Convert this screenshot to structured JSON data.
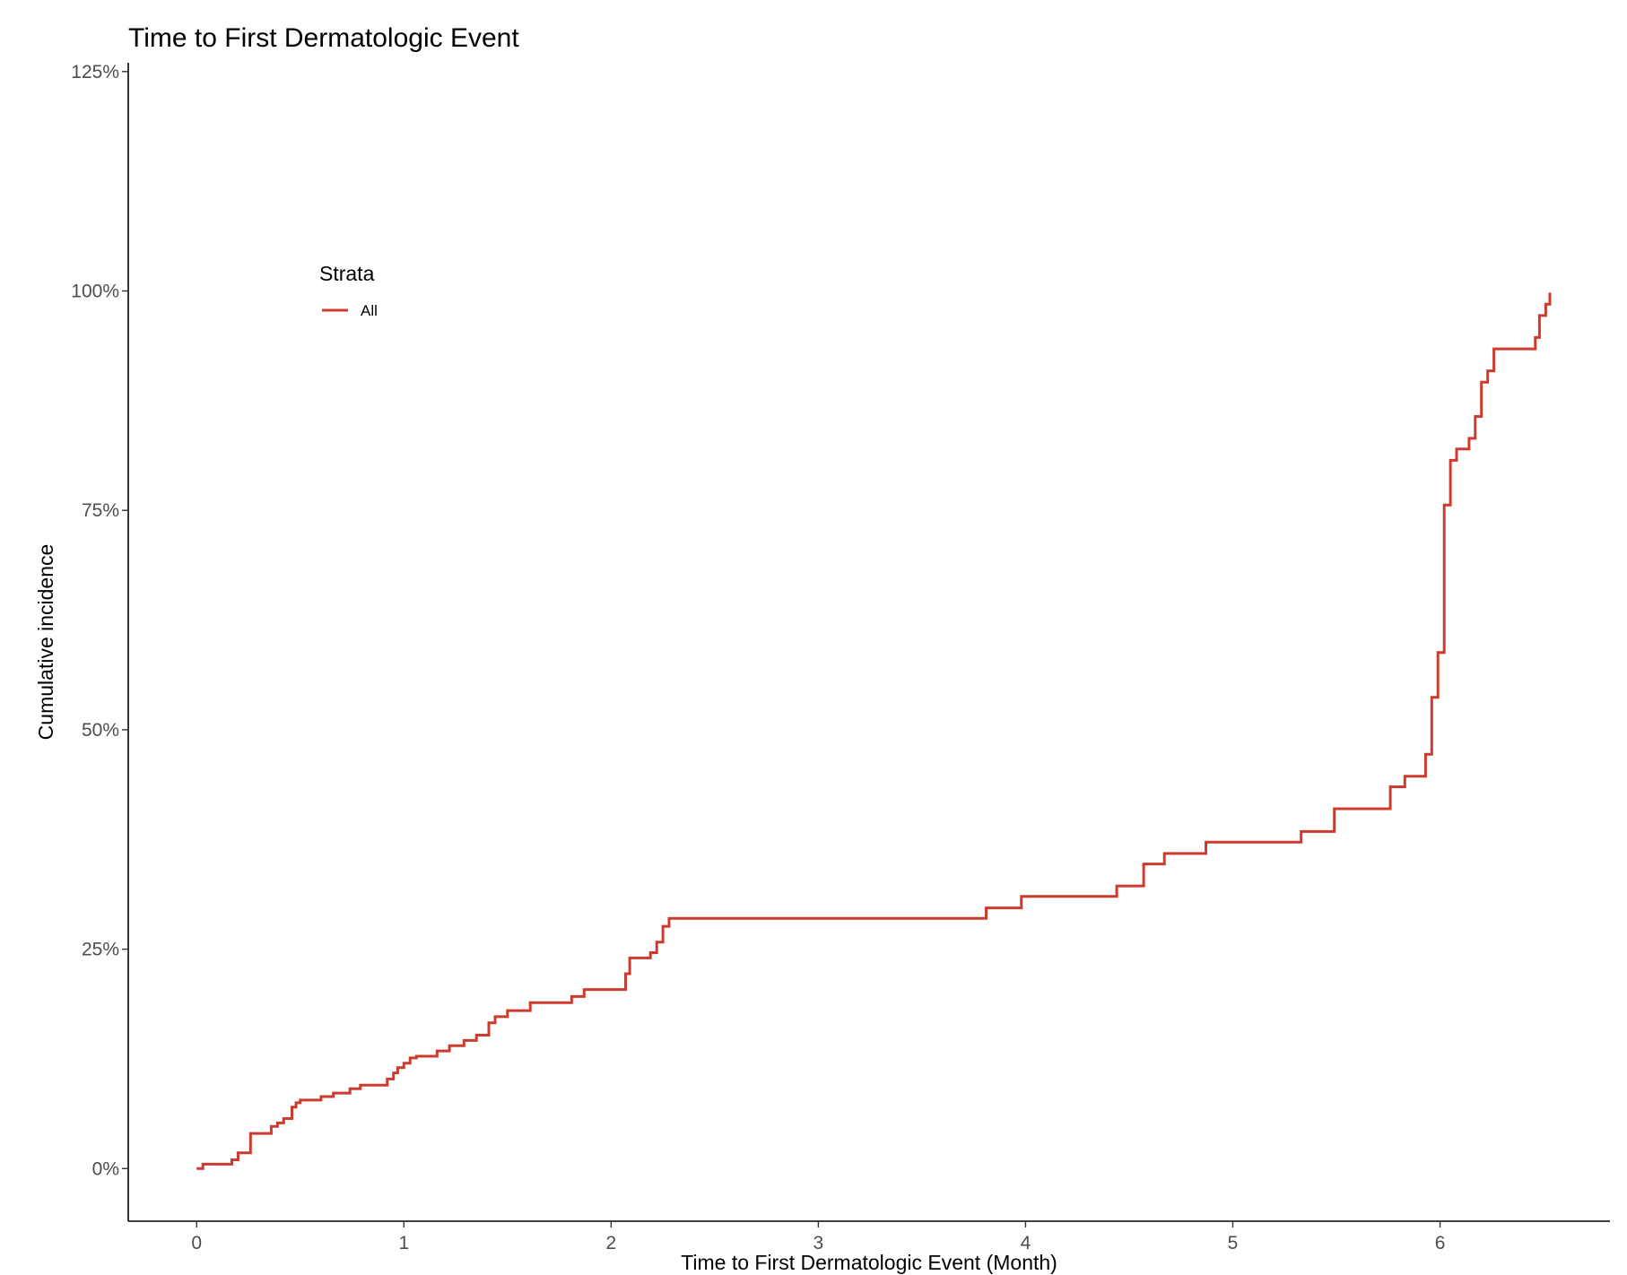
{
  "chart_data": {
    "type": "line",
    "step": true,
    "title": "Time to First Dermatologic Event",
    "xlabel": "Time to First Dermatologic Event (Month)",
    "ylabel": "Cumulative incidence",
    "xlim": [
      -0.33,
      6.82
    ],
    "ylim": [
      -0.06,
      1.26
    ],
    "xticks": [
      0,
      1,
      2,
      3,
      4,
      5,
      6
    ],
    "xtick_labels": [
      "0",
      "1",
      "2",
      "3",
      "4",
      "5",
      "6"
    ],
    "yticks": [
      0,
      0.25,
      0.5,
      0.75,
      1.0,
      1.25
    ],
    "ytick_labels": [
      "0%",
      "25%",
      "50%",
      "75%",
      "100%",
      "125%"
    ],
    "grid": false,
    "legend": {
      "title": "Strata",
      "position": "top-left"
    },
    "colors": {
      "series": "#cc3b2e",
      "axis": "#000000",
      "tick_text": "#4d4d4d"
    },
    "series": [
      {
        "name": "All",
        "color": "#cc3b2e",
        "x": [
          0.0,
          0.03,
          0.17,
          0.2,
          0.26,
          0.36,
          0.39,
          0.42,
          0.46,
          0.48,
          0.5,
          0.6,
          0.66,
          0.74,
          0.79,
          0.92,
          0.95,
          0.97,
          1.0,
          1.03,
          1.06,
          1.16,
          1.22,
          1.29,
          1.35,
          1.41,
          1.44,
          1.5,
          1.61,
          1.81,
          1.87,
          2.07,
          2.09,
          2.19,
          2.22,
          2.25,
          2.28,
          2.3,
          3.81,
          3.98,
          4.44,
          4.57,
          4.67,
          4.87,
          5.33,
          5.49,
          5.76,
          5.83,
          5.93,
          5.96,
          5.99,
          6.02,
          6.05,
          6.08,
          6.14,
          6.17,
          6.2,
          6.23,
          6.26,
          6.46,
          6.48,
          6.51,
          6.53
        ],
        "y": [
          0.0,
          0.005,
          0.01,
          0.018,
          0.04,
          0.048,
          0.052,
          0.057,
          0.07,
          0.075,
          0.078,
          0.082,
          0.086,
          0.091,
          0.095,
          0.102,
          0.109,
          0.115,
          0.12,
          0.126,
          0.128,
          0.134,
          0.14,
          0.146,
          0.152,
          0.166,
          0.173,
          0.18,
          0.189,
          0.196,
          0.204,
          0.222,
          0.24,
          0.246,
          0.258,
          0.276,
          0.285,
          0.285,
          0.297,
          0.31,
          0.322,
          0.347,
          0.359,
          0.372,
          0.384,
          0.41,
          0.435,
          0.447,
          0.472,
          0.537,
          0.588,
          0.756,
          0.807,
          0.82,
          0.832,
          0.857,
          0.896,
          0.909,
          0.934,
          0.947,
          0.972,
          0.985,
          0.998
        ]
      }
    ]
  }
}
